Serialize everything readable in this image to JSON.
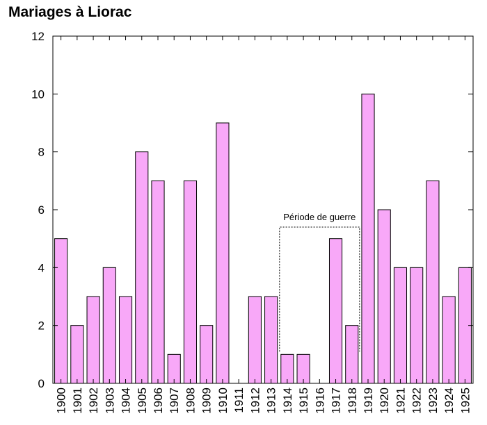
{
  "title": "Mariages à Liorac",
  "colors": {
    "bar_fill": "#f8a8f8",
    "bar_stroke": "#000000",
    "axis": "#000000"
  },
  "chart_data": {
    "type": "bar",
    "title": "Mariages à Liorac",
    "xlabel": "",
    "ylabel": "",
    "categories": [
      "1900",
      "1901",
      "1902",
      "1903",
      "1904",
      "1905",
      "1906",
      "1907",
      "1908",
      "1909",
      "1910",
      "1911",
      "1912",
      "1913",
      "1914",
      "1915",
      "1916",
      "1917",
      "1918",
      "1919",
      "1920",
      "1921",
      "1922",
      "1923",
      "1924",
      "1925"
    ],
    "values": [
      5,
      2,
      3,
      4,
      3,
      8,
      7,
      1,
      7,
      2,
      9,
      0,
      3,
      3,
      1,
      1,
      0,
      5,
      2,
      10,
      6,
      4,
      4,
      7,
      3,
      4
    ],
    "ylim": [
      0,
      12
    ],
    "yticks": [
      0,
      2,
      4,
      6,
      8,
      10,
      12
    ],
    "grid": false,
    "annotations": [
      {
        "text": "Période de guerre",
        "from": "1914",
        "to": "1918",
        "level": 5.4,
        "style": "dotted-bracket"
      }
    ]
  }
}
